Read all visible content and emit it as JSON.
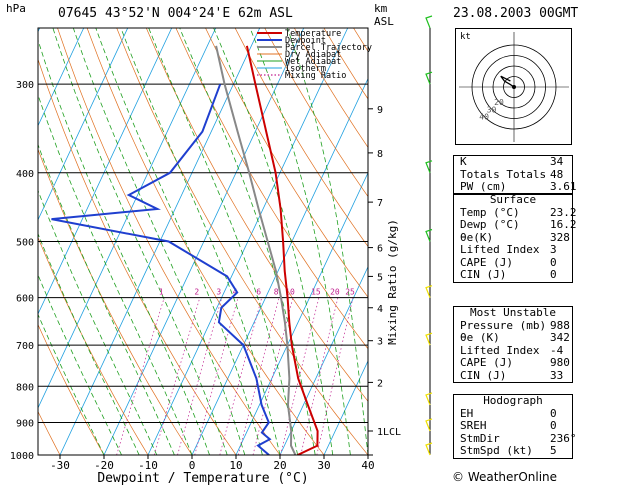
{
  "header": {
    "hpa_label": "hPa",
    "station": "07645  43°52'N  004°24'E  62m  ASL",
    "km_label": "km",
    "asl_label": "ASL",
    "datetime": "23.08.2003  00GMT"
  },
  "chart_data": {
    "type": "line",
    "title": "",
    "xlabel": "Dewpoint / Temperature (°C)",
    "ylabel": "",
    "mixing_label": "Mixing Ratio (g/kg)",
    "xlim": [
      -35,
      40
    ],
    "ylim": [
      1000,
      250
    ],
    "y_scale": "log",
    "skew": true,
    "x_ticks": [
      -30,
      -20,
      -10,
      0,
      10,
      20,
      30,
      40
    ],
    "pressure_ticks": [
      300,
      400,
      500,
      600,
      700,
      800,
      900,
      1000
    ],
    "km_ticks": [
      {
        "p": 1000,
        "label": ""
      },
      {
        "p": 925,
        "label": "1LCL"
      },
      {
        "p": 790,
        "label": "2"
      },
      {
        "p": 690,
        "label": "3"
      },
      {
        "p": 620,
        "label": "4"
      },
      {
        "p": 560,
        "label": "5"
      },
      {
        "p": 510,
        "label": "6"
      },
      {
        "p": 440,
        "label": "7"
      },
      {
        "p": 375,
        "label": "8"
      },
      {
        "p": 325,
        "label": "9"
      }
    ],
    "mixing_ratio_labels": [
      "1",
      "2",
      "3",
      "4",
      "6",
      "8",
      "10",
      "15",
      "20",
      "25"
    ],
    "legend": {
      "position": "top-right",
      "entries": [
        {
          "name": "Temperature",
          "color": "#cc0000"
        },
        {
          "name": "Dewpoint",
          "color": "#1f3fcf"
        },
        {
          "name": "Parcel Trajectory",
          "color": "#888888"
        },
        {
          "name": "Dry Adiabat",
          "color": "#e07020"
        },
        {
          "name": "Wet Adiabat",
          "color": "#20a020"
        },
        {
          "name": "Isotherm",
          "color": "#20a0e0"
        },
        {
          "name": "Mixing Ratio",
          "color": "#c0208f"
        }
      ]
    },
    "series": [
      {
        "name": "Temperature",
        "color": "#cc0000",
        "points": [
          [
            1000,
            24
          ],
          [
            970,
            27.5
          ],
          [
            925,
            26
          ],
          [
            850,
            21
          ],
          [
            780,
            16
          ],
          [
            700,
            11
          ],
          [
            650,
            8
          ],
          [
            600,
            5
          ],
          [
            550,
            1.5
          ],
          [
            500,
            -2
          ],
          [
            450,
            -6
          ],
          [
            400,
            -11
          ],
          [
            350,
            -17.5
          ],
          [
            300,
            -25
          ],
          [
            265,
            -31
          ]
        ]
      },
      {
        "name": "Dewpoint",
        "color": "#1f3fcf",
        "points": [
          [
            1000,
            17.5
          ],
          [
            970,
            14
          ],
          [
            950,
            16
          ],
          [
            930,
            13.5
          ],
          [
            900,
            14
          ],
          [
            850,
            10.5
          ],
          [
            780,
            6.5
          ],
          [
            700,
            0
          ],
          [
            650,
            -8
          ],
          [
            620,
            -9
          ],
          [
            590,
            -7
          ],
          [
            560,
            -11
          ],
          [
            500,
            -28
          ],
          [
            465,
            -57
          ],
          [
            450,
            -34
          ],
          [
            430,
            -42
          ],
          [
            400,
            -35
          ],
          [
            350,
            -32
          ],
          [
            300,
            -33
          ]
        ]
      },
      {
        "name": "Parcel Trajectory",
        "color": "#888888",
        "points": [
          [
            1000,
            23.5
          ],
          [
            970,
            21.5
          ],
          [
            925,
            20
          ],
          [
            850,
            16.5
          ],
          [
            780,
            14
          ],
          [
            700,
            10
          ],
          [
            650,
            7
          ],
          [
            600,
            3.5
          ],
          [
            550,
            -0.5
          ],
          [
            500,
            -5.5
          ],
          [
            450,
            -11
          ],
          [
            400,
            -17
          ],
          [
            350,
            -24
          ],
          [
            300,
            -32
          ],
          [
            265,
            -38
          ]
        ]
      }
    ],
    "hodograph": {
      "units_label": "kt",
      "ring_labels": [
        "20",
        "30",
        "40"
      ],
      "points": [
        [
          0,
          0
        ],
        [
          -3,
          2
        ],
        [
          -8,
          5
        ],
        [
          -11,
          9
        ],
        [
          -3,
          5
        ]
      ]
    },
    "wind_barbs": [
      {
        "p": 1000,
        "color": "#f0e000"
      },
      {
        "p": 925,
        "color": "#f0e000"
      },
      {
        "p": 850,
        "color": "#f0e000"
      },
      {
        "p": 700,
        "color": "#f0e000"
      },
      {
        "p": 600,
        "color": "#f0e000"
      },
      {
        "p": 500,
        "color": "#20c020"
      },
      {
        "p": 400,
        "color": "#20c020"
      },
      {
        "p": 300,
        "color": "#20c020"
      },
      {
        "p": 250,
        "color": "#20c020"
      }
    ]
  },
  "indices": {
    "top": [
      {
        "label": "K",
        "value": "34"
      },
      {
        "label": "Totals Totals",
        "value": "48"
      },
      {
        "label": "PW (cm)",
        "value": "3.61"
      }
    ],
    "surface": {
      "title": "Surface",
      "rows": [
        {
          "label": "Temp (°C)",
          "value": "23.2"
        },
        {
          "label": "Dewp (°C)",
          "value": "16.2"
        },
        {
          "label": "θe(K)",
          "value": "328"
        },
        {
          "label": "Lifted Index",
          "value": "3"
        },
        {
          "label": "CAPE (J)",
          "value": "0"
        },
        {
          "label": "CIN (J)",
          "value": "0"
        }
      ]
    },
    "most_unstable": {
      "title": "Most Unstable",
      "rows": [
        {
          "label": "Pressure (mb)",
          "value": "988"
        },
        {
          "label": "θe (K)",
          "value": "342"
        },
        {
          "label": "Lifted Index",
          "value": "-4"
        },
        {
          "label": "CAPE (J)",
          "value": "980"
        },
        {
          "label": "CIN (J)",
          "value": "33"
        }
      ]
    },
    "hodograph": {
      "title": "Hodograph",
      "rows": [
        {
          "label": "EH",
          "value": "0"
        },
        {
          "label": "SREH",
          "value": "0"
        },
        {
          "label": "StmDir",
          "value": "236°"
        },
        {
          "label": "StmSpd (kt)",
          "value": "5"
        }
      ]
    }
  },
  "credit": "© WeatherOnline",
  "colors": {
    "temperature": "#cc0000",
    "dewpoint": "#1f3fcf",
    "parcel": "#888888",
    "dry": "#e07020",
    "wet": "#20a020",
    "iso": "#20a0e0",
    "mix": "#c0208f"
  }
}
